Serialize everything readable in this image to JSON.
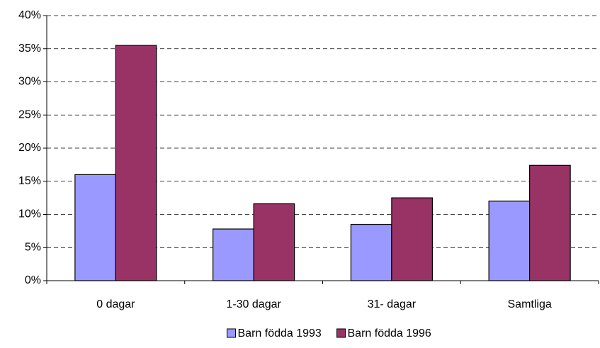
{
  "chart_data": {
    "type": "bar",
    "categories": [
      "0 dagar",
      "1-30 dagar",
      "31- dagar",
      "Samtliga"
    ],
    "series": [
      {
        "name": "Barn födda 1993",
        "color": "#9999ff",
        "values": [
          16,
          7.8,
          8.5,
          12
        ]
      },
      {
        "name": "Barn födda 1996",
        "color": "#993366",
        "values": [
          35.5,
          11.6,
          12.5,
          17.4
        ]
      }
    ],
    "ylim": [
      0,
      40
    ],
    "yticks": [
      {
        "value": 0,
        "label": "0%"
      },
      {
        "value": 5,
        "label": "5%"
      },
      {
        "value": 10,
        "label": "10%"
      },
      {
        "value": 15,
        "label": "15%"
      },
      {
        "value": 20,
        "label": "20%"
      },
      {
        "value": 25,
        "label": "25%"
      },
      {
        "value": 30,
        "label": "30%"
      },
      {
        "value": 35,
        "label": "35%"
      },
      {
        "value": 40,
        "label": "40%"
      }
    ],
    "grid": true,
    "legend": "bottom"
  }
}
